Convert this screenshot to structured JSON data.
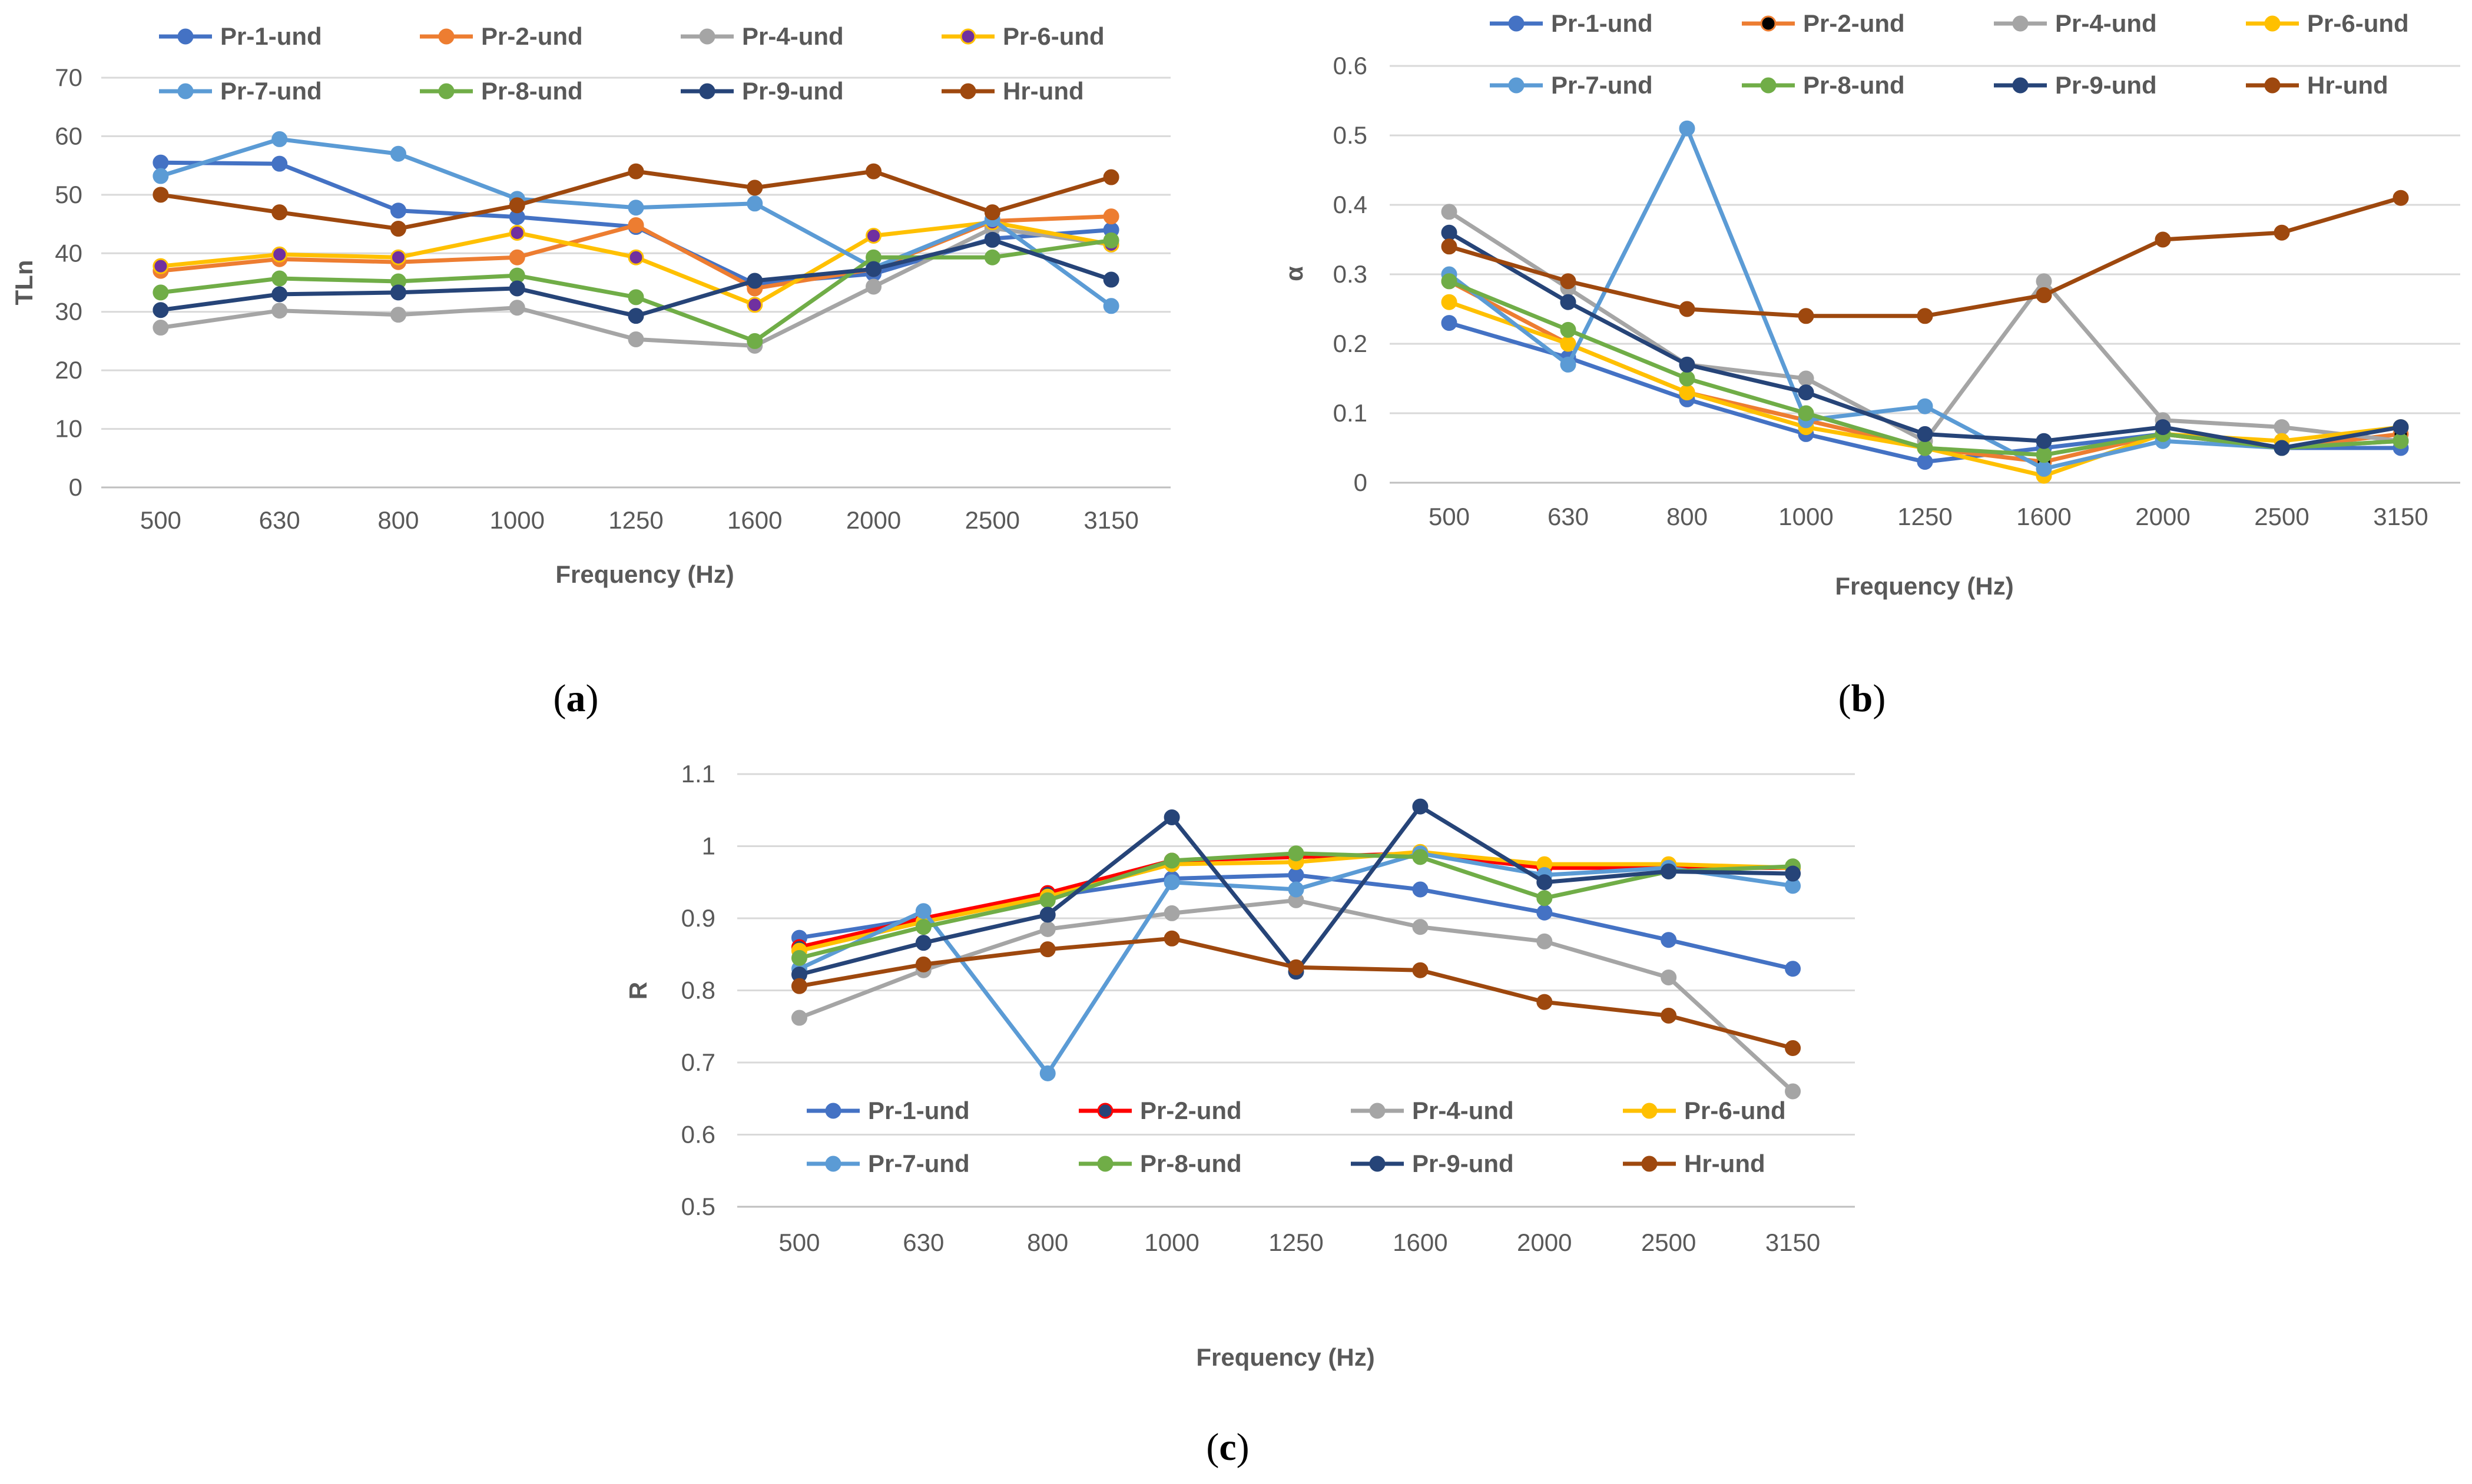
{
  "chart_data": [
    {
      "panel": "a",
      "type": "line",
      "title": "",
      "xlabel": "Frequency (Hz)",
      "ylabel": "TLn",
      "categories": [
        "500",
        "630",
        "800",
        "1000",
        "1250",
        "1600",
        "2000",
        "2500",
        "3150"
      ],
      "ylim": [
        0,
        70
      ],
      "yticks": [
        0,
        10,
        20,
        30,
        40,
        50,
        60,
        70
      ],
      "ytick_labels": [
        "0",
        "10",
        "20",
        "30",
        "40",
        "50",
        "60",
        "70"
      ],
      "grid": true,
      "legend_position": "top",
      "series": [
        {
          "name": "Pr-1-und",
          "color": "#4472C4",
          "marker_fill": "#4472C4",
          "values": [
            55.5,
            55.3,
            47.3,
            46.2,
            44.5,
            34.8,
            36.5,
            42.5,
            44
          ]
        },
        {
          "name": "Pr-2-und",
          "color": "#ED7D31",
          "marker_fill": "#ED7D31",
          "values": [
            37,
            39,
            38.5,
            39.3,
            44.8,
            34,
            37.3,
            45.5,
            46.3
          ]
        },
        {
          "name": "Pr-4-und",
          "color": "#A5A5A5",
          "marker_fill": "#A5A5A5",
          "values": [
            27.3,
            30.2,
            29.5,
            30.7,
            25.3,
            24.2,
            34.3,
            44.3,
            41.5
          ]
        },
        {
          "name": "Pr-6-und",
          "color": "#FFC000",
          "marker_fill": "#7030A0",
          "values": [
            37.8,
            39.8,
            39.3,
            43.5,
            39.3,
            31.2,
            43,
            45.3,
            41.5
          ]
        },
        {
          "name": "Pr-7-und",
          "color": "#5B9BD5",
          "marker_fill": "#5B9BD5",
          "values": [
            53.2,
            59.5,
            57,
            49.3,
            47.8,
            48.5,
            37.5,
            45.8,
            31
          ]
        },
        {
          "name": "Pr-8-und",
          "color": "#70AD47",
          "marker_fill": "#70AD47",
          "values": [
            33.3,
            35.7,
            35.2,
            36.2,
            32.5,
            25,
            39.3,
            39.3,
            42.2
          ]
        },
        {
          "name": "Pr-9-und",
          "color": "#264478",
          "marker_fill": "#264478",
          "values": [
            30.3,
            33,
            33.3,
            34,
            29.3,
            35.3,
            37.3,
            42.3,
            35.5
          ]
        },
        {
          "name": "Hr-und",
          "color": "#9E480E",
          "marker_fill": "#9E480E",
          "values": [
            50,
            47,
            44.2,
            48.2,
            54,
            51.2,
            54,
            47,
            53
          ]
        }
      ]
    },
    {
      "panel": "b",
      "type": "line",
      "title": "",
      "xlabel": "Frequency (Hz)",
      "ylabel": "α",
      "categories": [
        "500",
        "630",
        "800",
        "1000",
        "1250",
        "1600",
        "2000",
        "2500",
        "3150"
      ],
      "ylim": [
        0,
        0.6
      ],
      "yticks": [
        0,
        0.1,
        0.2,
        0.3,
        0.4,
        0.5,
        0.6
      ],
      "ytick_labels": [
        "0",
        "0.1",
        "0.2",
        "0.3",
        "0.4",
        "0.5",
        "0.6"
      ],
      "grid": true,
      "legend_position": "top",
      "series": [
        {
          "name": "Pr-1-und",
          "color": "#4472C4",
          "marker_fill": "#4472C4",
          "values": [
            0.23,
            0.18,
            0.12,
            0.07,
            0.03,
            0.05,
            0.07,
            0.05,
            0.05
          ]
        },
        {
          "name": "Pr-2-und",
          "color": "#ED7D31",
          "marker_fill": "#000000",
          "values": [
            0.29,
            0.2,
            0.13,
            0.09,
            0.05,
            0.03,
            0.07,
            0.05,
            0.07
          ]
        },
        {
          "name": "Pr-4-und",
          "color": "#A5A5A5",
          "marker_fill": "#A5A5A5",
          "values": [
            0.39,
            0.28,
            0.17,
            0.15,
            0.06,
            0.29,
            0.09,
            0.08,
            0.06
          ]
        },
        {
          "name": "Pr-6-und",
          "color": "#FFC000",
          "marker_fill": "#FFC000",
          "values": [
            0.26,
            0.2,
            0.13,
            0.08,
            0.05,
            0.01,
            0.07,
            0.06,
            0.08
          ]
        },
        {
          "name": "Pr-7-und",
          "color": "#5B9BD5",
          "marker_fill": "#5B9BD5",
          "values": [
            0.3,
            0.17,
            0.51,
            0.09,
            0.11,
            0.02,
            0.06,
            0.05,
            0.06
          ]
        },
        {
          "name": "Pr-8-und",
          "color": "#70AD47",
          "marker_fill": "#70AD47",
          "values": [
            0.29,
            0.22,
            0.15,
            0.1,
            0.05,
            0.04,
            0.07,
            0.05,
            0.06
          ]
        },
        {
          "name": "Pr-9-und",
          "color": "#264478",
          "marker_fill": "#264478",
          "values": [
            0.36,
            0.26,
            0.17,
            0.13,
            0.07,
            0.06,
            0.08,
            0.05,
            0.08
          ]
        },
        {
          "name": "Hr-und",
          "color": "#9E480E",
          "marker_fill": "#9E480E",
          "values": [
            0.34,
            0.29,
            0.25,
            0.24,
            0.24,
            0.27,
            0.35,
            0.36,
            0.41
          ]
        }
      ]
    },
    {
      "panel": "c",
      "type": "line",
      "title": "",
      "xlabel": "Frequency (Hz)",
      "ylabel": "R",
      "categories": [
        "500",
        "630",
        "800",
        "1000",
        "1250",
        "1600",
        "2000",
        "2500",
        "3150"
      ],
      "ylim": [
        0.5,
        1.1
      ],
      "yticks": [
        0.5,
        0.6,
        0.7,
        0.8,
        0.9,
        1.0,
        1.1
      ],
      "ytick_labels": [
        "0.5",
        "0.6",
        "0.7",
        "0.8",
        "0.9",
        "1",
        "1.1"
      ],
      "grid": true,
      "legend_position": "inside-bottom",
      "series": [
        {
          "name": "Pr-1-und",
          "color": "#4472C4",
          "marker_fill": "#4472C4",
          "values": [
            0.873,
            0.9,
            0.93,
            0.955,
            0.96,
            0.94,
            0.908,
            0.87,
            0.83
          ]
        },
        {
          "name": "Pr-2-und",
          "color": "#FF0000",
          "marker_fill": "#264478",
          "values": [
            0.86,
            0.9,
            0.935,
            0.98,
            0.985,
            0.99,
            0.97,
            0.97,
            0.97
          ]
        },
        {
          "name": "Pr-4-und",
          "color": "#A5A5A5",
          "marker_fill": "#A5A5A5",
          "values": [
            0.762,
            0.828,
            0.885,
            0.907,
            0.925,
            0.888,
            0.868,
            0.818,
            0.66
          ]
        },
        {
          "name": "Pr-6-und",
          "color": "#FFC000",
          "marker_fill": "#FFC000",
          "values": [
            0.855,
            0.895,
            0.93,
            0.975,
            0.978,
            0.992,
            0.975,
            0.975,
            0.97
          ]
        },
        {
          "name": "Pr-7-und",
          "color": "#5B9BD5",
          "marker_fill": "#5B9BD5",
          "values": [
            0.83,
            0.91,
            0.685,
            0.95,
            0.94,
            0.99,
            0.96,
            0.97,
            0.945
          ]
        },
        {
          "name": "Pr-8-und",
          "color": "#70AD47",
          "marker_fill": "#70AD47",
          "values": [
            0.845,
            0.888,
            0.925,
            0.98,
            0.99,
            0.985,
            0.928,
            0.965,
            0.972
          ]
        },
        {
          "name": "Pr-9-und",
          "color": "#264478",
          "marker_fill": "#264478",
          "values": [
            0.822,
            0.866,
            0.905,
            1.04,
            0.826,
            1.055,
            0.95,
            0.965,
            0.962
          ]
        },
        {
          "name": "Hr-und",
          "color": "#9E480E",
          "marker_fill": "#9E480E",
          "values": [
            0.806,
            0.836,
            0.857,
            0.872,
            0.832,
            0.828,
            0.784,
            0.765,
            0.72
          ]
        }
      ]
    }
  ],
  "panel_labels": [
    "(a)",
    "(b)",
    "(c)"
  ]
}
